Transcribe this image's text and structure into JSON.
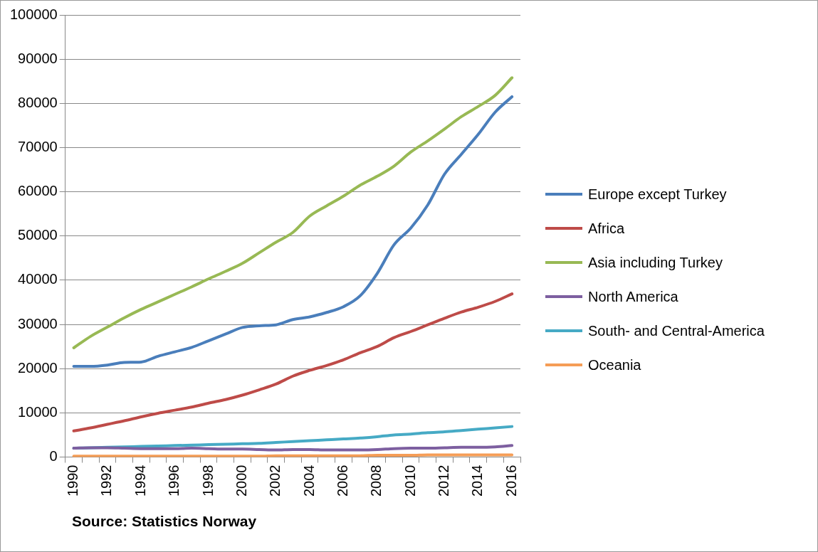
{
  "chart_data": {
    "type": "line",
    "categories": [
      "1990",
      null,
      "1992",
      null,
      "1994",
      null,
      "1996",
      null,
      "1998",
      null,
      "2000",
      null,
      "2002",
      null,
      "2004",
      null,
      "2006",
      null,
      "2008",
      null,
      "2010",
      null,
      "2012",
      null,
      "2014",
      null,
      "2016"
    ],
    "series": [
      {
        "name": "Europe except Turkey",
        "color": "#4a7ebb",
        "values": [
          20500,
          20500,
          20800,
          21400,
          21500,
          22800,
          23800,
          24800,
          26300,
          27800,
          29300,
          29700,
          29900,
          31100,
          31700,
          32700,
          34000,
          36500,
          41500,
          48000,
          51800,
          57000,
          64000,
          68500,
          73000,
          78000,
          81500
        ]
      },
      {
        "name": "Africa",
        "color": "#be4b48",
        "values": [
          5900,
          6600,
          7400,
          8200,
          9100,
          9900,
          10600,
          11300,
          12200,
          13000,
          14000,
          15200,
          16500,
          18300,
          19600,
          20700,
          22000,
          23600,
          25000,
          27000,
          28400,
          29900,
          31400,
          32800,
          33900,
          35200,
          36900
        ]
      },
      {
        "name": "Asia including Turkey",
        "color": "#98b954",
        "values": [
          24700,
          27300,
          29400,
          31500,
          33400,
          35100,
          36800,
          38500,
          40300,
          42000,
          43800,
          46200,
          48600,
          50800,
          54500,
          56800,
          59000,
          61500,
          63500,
          65800,
          69000,
          71500,
          74200,
          77000,
          79300,
          81800,
          85800
        ]
      },
      {
        "name": "North America",
        "color": "#7d5fa0",
        "values": [
          2000,
          2100,
          2100,
          2000,
          1900,
          1900,
          1900,
          2000,
          1900,
          1800,
          1800,
          1700,
          1600,
          1700,
          1700,
          1600,
          1600,
          1600,
          1700,
          1900,
          2000,
          2000,
          2100,
          2200,
          2200,
          2300,
          2600
        ]
      },
      {
        "name": "South- and Central-America",
        "color": "#46aac5",
        "values": [
          2000,
          2100,
          2200,
          2300,
          2400,
          2500,
          2600,
          2700,
          2800,
          2900,
          3000,
          3100,
          3300,
          3500,
          3700,
          3900,
          4100,
          4300,
          4600,
          5000,
          5200,
          5500,
          5700,
          6000,
          6300,
          6600,
          6900
        ]
      },
      {
        "name": "Oceania",
        "color": "#f59d56",
        "values": [
          200,
          200,
          200,
          200,
          200,
          200,
          200,
          200,
          200,
          200,
          200,
          200,
          300,
          300,
          300,
          300,
          300,
          300,
          400,
          400,
          400,
          500,
          500,
          500,
          500,
          500,
          500
        ]
      }
    ],
    "ylim": [
      0,
      100000
    ],
    "yticks": [
      0,
      10000,
      20000,
      30000,
      40000,
      50000,
      60000,
      70000,
      80000,
      90000,
      100000
    ],
    "grid": "y",
    "legend": "right",
    "annotations": [
      "Source: Statistics Norway"
    ]
  }
}
